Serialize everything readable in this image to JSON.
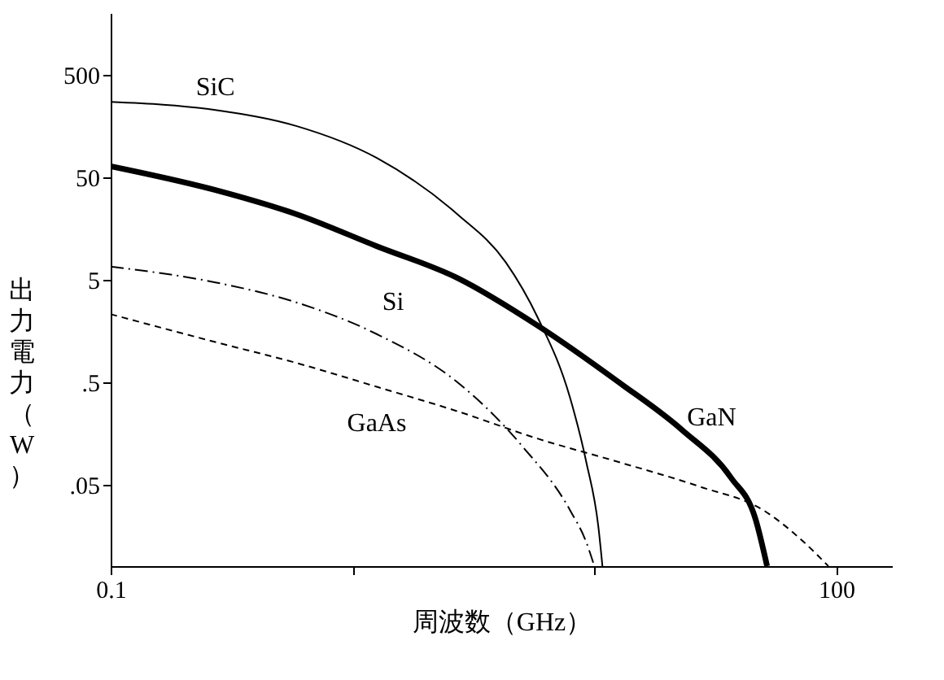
{
  "chart_data": {
    "type": "line",
    "xlabel": "周波数（GHz）",
    "ylabel": "出力電力（W）",
    "log": "xy",
    "grid": false,
    "marker": "none",
    "xlim": [
      0.1,
      170
    ],
    "ylim": [
      0.008,
      2000
    ],
    "xticks": [
      0.1,
      {
        "value": 1,
        "label": null
      },
      {
        "value": 10,
        "label": null
      },
      100
    ],
    "yticks": [
      {
        "value": 0.05,
        "label": ".05"
      },
      {
        "value": 0.5,
        "label": ".5"
      },
      5,
      50,
      500
    ],
    "series": [
      {
        "name": "SiC",
        "color": "#000000",
        "line_style": "solid",
        "x": [
          0.1,
          0.271,
          0.585,
          1.26,
          2.71,
          4.3,
          5.85,
          7.94,
          9.26,
          10.4,
          10.8
        ],
        "values": [
          271,
          226,
          158,
          77,
          21.8,
          7.4,
          2.1,
          0.35,
          0.083,
          0.019,
          0.008
        ]
      },
      {
        "name": "GaN",
        "color": "#000000",
        "line_style": "solid",
        "x": [
          0.1,
          0.271,
          0.585,
          1.26,
          2.71,
          5.85,
          12.6,
          23.1,
          36.8,
          46.4,
          51.8
        ],
        "values": [
          64,
          37.5,
          21.8,
          10.6,
          5.2,
          1.77,
          0.5,
          0.17,
          0.058,
          0.023,
          0.008
        ]
      },
      {
        "name": "Si",
        "color": "#000000",
        "line_style": "dashdot",
        "x": [
          0.1,
          0.271,
          0.585,
          1.26,
          2.71,
          5.01,
          7.94,
          9.26,
          10
        ],
        "values": [
          6.7,
          4.7,
          3.0,
          1.47,
          0.5,
          0.12,
          0.028,
          0.0137,
          0.008
        ]
      },
      {
        "name": "GaAs",
        "color": "#000000",
        "line_style": "dashed",
        "x": [
          0.1,
          0.271,
          0.585,
          1.26,
          2.71,
          5.85,
          12.6,
          27.1,
          50.1,
          73.6,
          92.8
        ],
        "values": [
          2.3,
          1.23,
          0.77,
          0.45,
          0.26,
          0.14,
          0.083,
          0.048,
          0.028,
          0.0137,
          0.008
        ]
      }
    ]
  }
}
